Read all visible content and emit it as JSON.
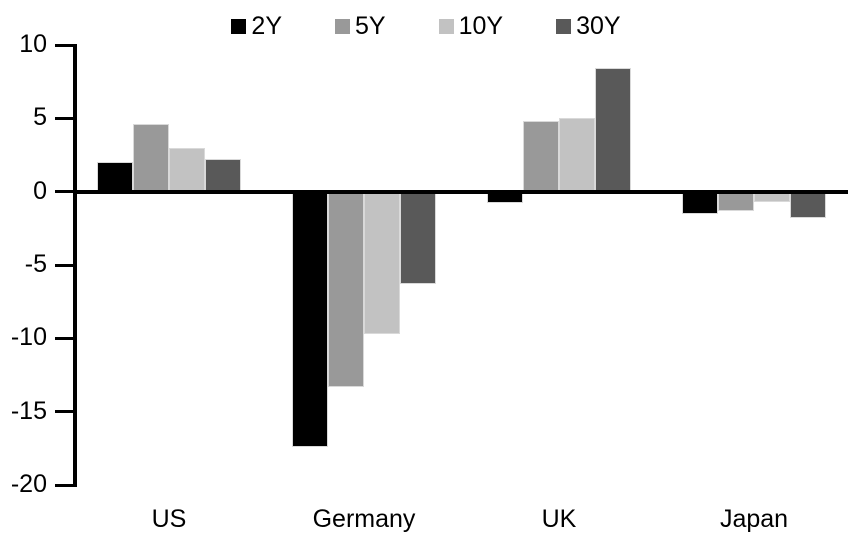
{
  "chart_data": {
    "type": "bar",
    "title": "",
    "categories": [
      "US",
      "Germany",
      "UK",
      "Japan"
    ],
    "series": [
      {
        "name": "2Y",
        "color": "#000000",
        "values": [
          2.0,
          -17.4,
          -0.8,
          -1.5
        ]
      },
      {
        "name": "5Y",
        "color": "#999999",
        "values": [
          4.6,
          -13.3,
          4.8,
          -1.3
        ]
      },
      {
        "name": "10Y",
        "color": "#c2c2c2",
        "values": [
          3.0,
          -9.7,
          5.0,
          -0.7
        ]
      },
      {
        "name": "30Y",
        "color": "#595959",
        "values": [
          2.2,
          -6.3,
          8.4,
          -1.8
        ]
      }
    ],
    "ylim": [
      -20,
      10
    ],
    "yticks": [
      10,
      5,
      0,
      -5,
      -10,
      -15,
      -20
    ],
    "xlabel": "",
    "ylabel": "",
    "legend_position": "top",
    "grid": false,
    "axis_color": "#000000",
    "background_color": "#ffffff"
  }
}
